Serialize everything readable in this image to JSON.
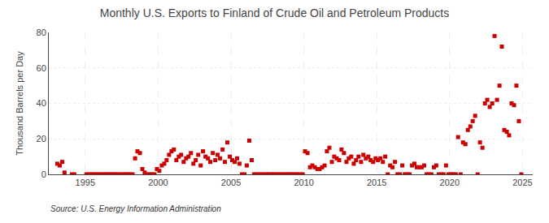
{
  "chart_data": {
    "type": "scatter",
    "title": "Monthly U.S. Exports to Finland of Crude Oil and Petroleum Products",
    "ylabel": "Thousand Barrels per Day",
    "annotations": [
      "Source: U.S. Energy Information Administration"
    ],
    "color": "#cc0000",
    "marker": "square",
    "grid": true,
    "xlim": [
      1992.5,
      2025.7
    ],
    "xticks": [
      1995,
      2000,
      2005,
      2010,
      2015,
      2020,
      2025
    ],
    "ylim": [
      0,
      80
    ],
    "yticks": [
      0,
      20,
      40,
      60,
      80
    ],
    "x": [
      1993.08,
      1993.25,
      1993.42,
      1993.58,
      1994.08,
      1994.25,
      1995.08,
      1995.25,
      1995.42,
      1995.58,
      1995.75,
      1995.92,
      1996.08,
      1996.25,
      1996.42,
      1996.58,
      1996.75,
      1996.92,
      1997.08,
      1997.25,
      1997.42,
      1997.58,
      1997.75,
      1997.92,
      1998.08,
      1998.25,
      1998.42,
      1998.58,
      1998.75,
      1998.92,
      1999.08,
      1999.25,
      1999.42,
      1999.58,
      1999.75,
      1999.92,
      2000.08,
      2000.25,
      2000.42,
      2000.58,
      2000.75,
      2000.92,
      2001.08,
      2001.25,
      2001.42,
      2001.58,
      2001.75,
      2001.92,
      2002.08,
      2002.25,
      2002.42,
      2002.58,
      2002.75,
      2002.92,
      2003.08,
      2003.25,
      2003.42,
      2003.58,
      2003.75,
      2003.92,
      2004.08,
      2004.25,
      2004.42,
      2004.58,
      2004.75,
      2004.92,
      2005.08,
      2005.25,
      2005.42,
      2005.58,
      2005.75,
      2005.92,
      2006.08,
      2006.25,
      2006.42,
      2006.58,
      2006.75,
      2006.92,
      2007.08,
      2007.25,
      2007.42,
      2007.58,
      2007.75,
      2007.92,
      2008.08,
      2008.25,
      2008.42,
      2008.58,
      2008.75,
      2008.92,
      2009.08,
      2009.25,
      2009.42,
      2009.58,
      2009.75,
      2009.92,
      2010.08,
      2010.25,
      2010.42,
      2010.58,
      2010.75,
      2010.92,
      2011.08,
      2011.25,
      2011.42,
      2011.58,
      2011.75,
      2011.92,
      2012.08,
      2012.25,
      2012.42,
      2012.58,
      2012.75,
      2012.92,
      2013.08,
      2013.25,
      2013.42,
      2013.58,
      2013.75,
      2013.92,
      2014.08,
      2014.25,
      2014.42,
      2014.58,
      2014.75,
      2014.92,
      2015.08,
      2015.25,
      2015.42,
      2015.58,
      2015.75,
      2015.92,
      2016.08,
      2016.25,
      2016.42,
      2016.58,
      2016.75,
      2016.92,
      2017.08,
      2017.25,
      2017.42,
      2017.58,
      2017.75,
      2017.92,
      2018.08,
      2018.25,
      2018.42,
      2018.58,
      2018.75,
      2018.92,
      2019.08,
      2019.25,
      2019.42,
      2019.58,
      2019.75,
      2019.92,
      2020.08,
      2020.25,
      2020.42,
      2020.58,
      2020.75,
      2020.92,
      2021.08,
      2021.25,
      2021.42,
      2021.58,
      2021.75,
      2021.92,
      2022.08,
      2022.25,
      2022.42,
      2022.58,
      2022.75,
      2022.92,
      2023.08,
      2023.25,
      2023.42,
      2023.58,
      2023.75,
      2023.92,
      2024.08,
      2024.25,
      2024.42,
      2024.58,
      2024.75,
      2024.92
    ],
    "values": [
      6,
      5,
      7,
      1,
      0,
      0,
      0,
      0,
      0,
      0,
      0,
      0,
      0,
      0,
      0,
      0,
      0,
      0,
      0,
      0,
      0,
      0,
      0,
      0,
      0,
      0,
      9,
      13,
      12,
      3,
      1,
      0,
      0,
      0,
      0,
      3,
      2,
      5,
      6,
      8,
      11,
      13,
      14,
      8,
      10,
      11,
      7,
      9,
      10,
      12,
      6,
      8,
      11,
      5,
      13,
      10,
      9,
      7,
      12,
      8,
      11,
      9,
      14,
      7,
      18,
      10,
      8,
      7,
      9,
      6,
      0,
      0,
      5,
      19,
      8,
      0,
      0,
      0,
      0,
      0,
      0,
      0,
      0,
      0,
      0,
      0,
      0,
      0,
      0,
      0,
      0,
      0,
      0,
      0,
      0,
      0,
      13,
      12,
      4,
      5,
      4,
      3,
      3,
      4,
      5,
      13,
      15,
      7,
      10,
      9,
      8,
      14,
      12,
      7,
      9,
      10,
      6,
      8,
      10,
      7,
      11,
      9,
      10,
      8,
      7,
      9,
      8,
      9,
      7,
      10,
      0,
      5,
      4,
      7,
      0,
      0,
      5,
      0,
      0,
      0,
      5,
      6,
      4,
      4,
      4,
      5,
      0,
      0,
      0,
      4,
      5,
      0,
      0,
      0,
      5,
      0,
      0,
      0,
      0,
      21,
      0,
      18,
      17,
      25,
      27,
      30,
      33,
      0,
      18,
      15,
      40,
      42,
      38,
      40,
      78,
      42,
      50,
      72,
      25,
      24,
      22,
      40,
      39,
      50,
      30,
      0
    ]
  }
}
